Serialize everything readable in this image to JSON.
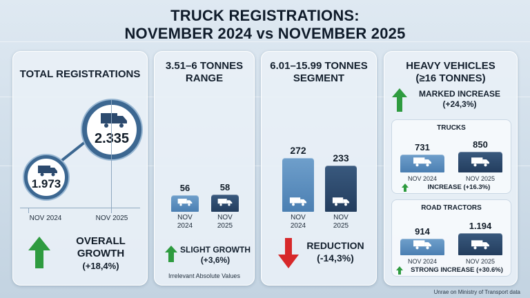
{
  "header": {
    "title_line1": "TRUCK REGISTRATIONS:",
    "title_line2": "NOVEMBER 2024 vs NOVEMBER 2025"
  },
  "colors": {
    "bar_light": "#5b8dbe",
    "bar_dark": "#2c4a6e",
    "up_arrow": "#2e9b3f",
    "down_arrow": "#d7282a"
  },
  "chart_data": [
    {
      "type": "bar",
      "title": "TOTAL REGISTRATIONS",
      "categories": [
        "NOV 2024",
        "NOV 2025"
      ],
      "values": [
        1973,
        2335
      ],
      "value_labels": [
        "1.973",
        "2.335"
      ],
      "change_label_line1": "OVERALL",
      "change_label_line2": "GROWTH",
      "change_value": "(+18,4%)",
      "direction": "up"
    },
    {
      "type": "bar",
      "title_line1": "3.51–6 TONNES",
      "title_line2": "RANGE",
      "categories": [
        "NOV 2024",
        "NOV 2025"
      ],
      "values": [
        56,
        58
      ],
      "value_labels": [
        "56",
        "58"
      ],
      "change_label": "SLIGHT GROWTH",
      "change_value": "(+3,6%)",
      "note": "Irrelevant Absolute Values",
      "direction": "up"
    },
    {
      "type": "bar",
      "title_line1": "6.01–15.99 TONNES",
      "title_line2": "SEGMENT",
      "categories": [
        "NOV 2024",
        "NOV 2025"
      ],
      "values": [
        272,
        233
      ],
      "value_labels": [
        "272",
        "233"
      ],
      "change_label": "REDUCTION",
      "change_value": "(-14,3%)",
      "direction": "down"
    },
    {
      "type": "bar",
      "title_line1": "HEAVY VEHICLES",
      "title_line2": "(≥16 TONNES)",
      "change_label": "MARKED INCREASE",
      "change_value": "(+24,3%)",
      "direction": "up",
      "subcharts": [
        {
          "title": "TRUCKS",
          "categories": [
            "NOV 2024",
            "NOV 2025"
          ],
          "values": [
            731,
            850
          ],
          "value_labels": [
            "731",
            "850"
          ],
          "change": "INCREASE (+16.3%)"
        },
        {
          "title": "ROAD TRACTORS",
          "categories": [
            "NOV 2024",
            "NOV 2025"
          ],
          "values": [
            914,
            1194
          ],
          "value_labels": [
            "914",
            "1.194"
          ],
          "change": "STRONG INCREASE (+30.6%)"
        }
      ]
    }
  ],
  "footer": {
    "source": "Unrae on Ministry of Transport data"
  }
}
